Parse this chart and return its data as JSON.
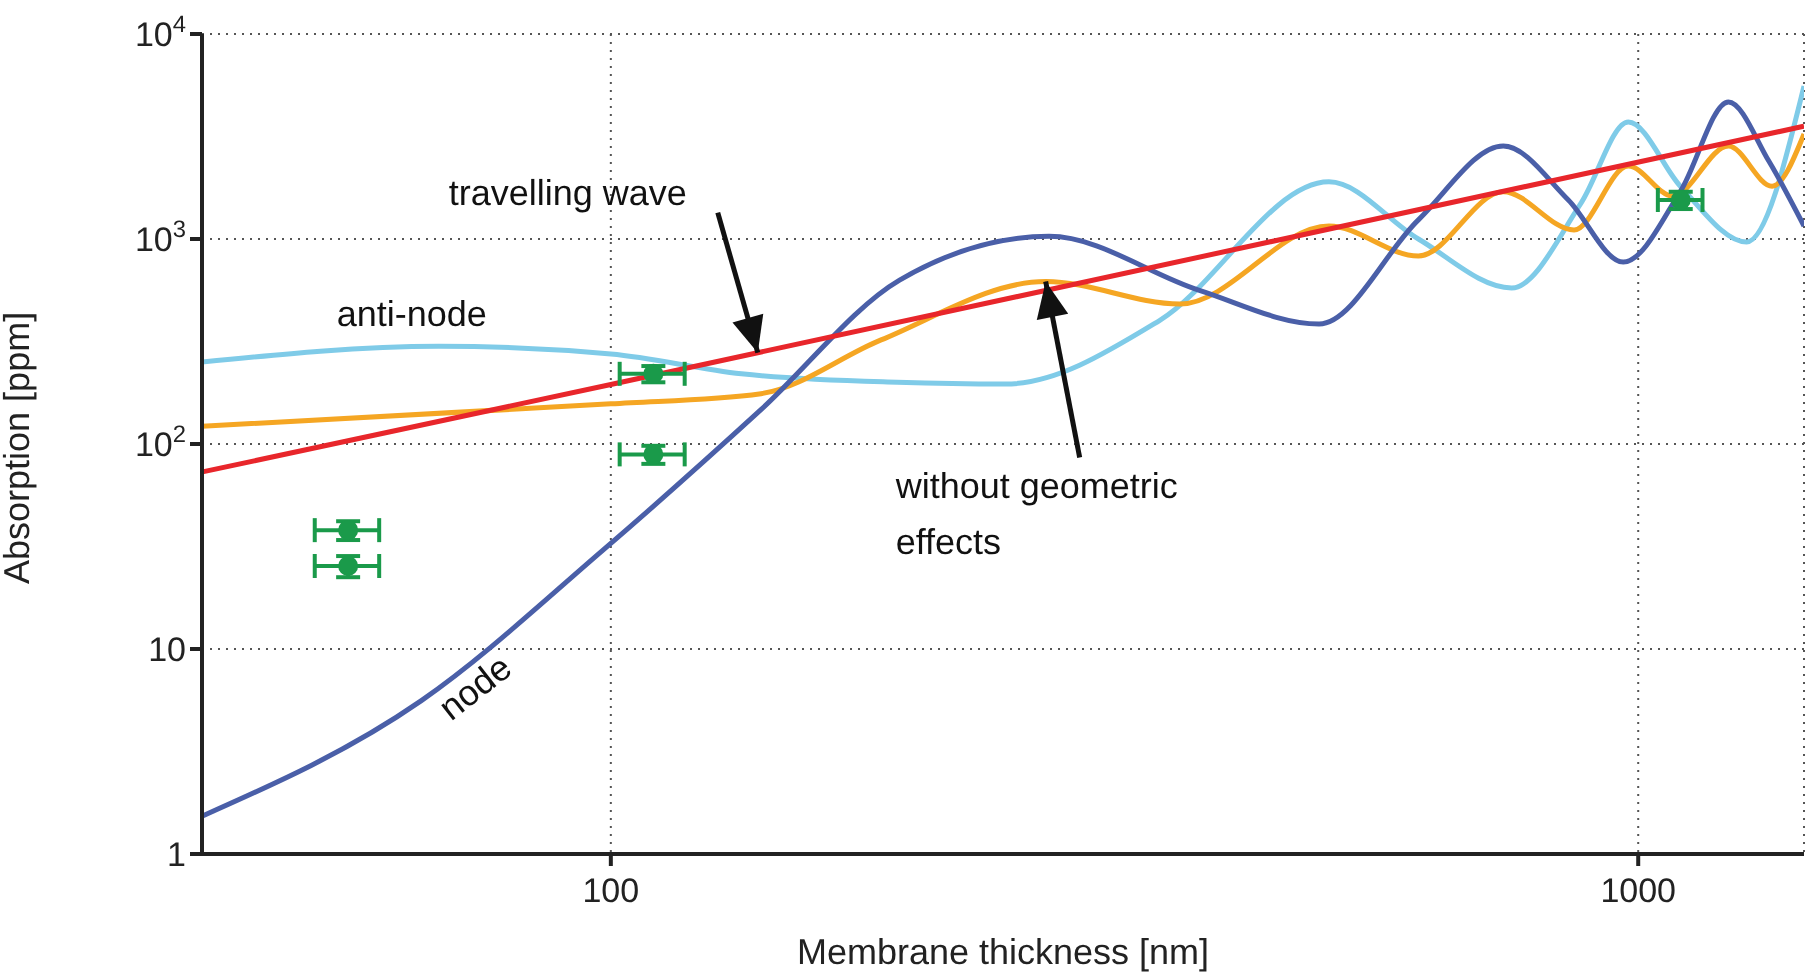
{
  "chart_data": {
    "type": "line",
    "xlabel": "Membrane thickness [nm]",
    "ylabel": "Absorption [ppm]",
    "log": "xy",
    "grid": true,
    "legend": false,
    "xlim": [
      40,
      1450
    ],
    "xticks": [
      100,
      1000
    ],
    "ylim": [
      1,
      10000
    ],
    "yticks": [
      1,
      10,
      {
        "value": 100,
        "label": "10$^{2}$"
      },
      {
        "value": 1000,
        "label": "10$^{3}$"
      },
      {
        "value": 10000,
        "label": "10$^{4}$"
      }
    ],
    "series": [
      {
        "type": "line",
        "color": "#7fcbe8",
        "x": [
          40,
          68,
          100,
          134,
          190,
          242,
          342,
          500,
          611,
          753,
          880,
          978,
          1100,
          1275,
          1450
        ],
        "values": [
          251,
          300,
          275,
          220,
          200,
          196,
          400,
          1900,
          1000,
          577,
          1500,
          3720,
          1800,
          967,
          5570
        ]
      },
      {
        "type": "line",
        "color": "#f5a623",
        "x": [
          40,
          100,
          140,
          183,
          265,
          358,
          500,
          611,
          739,
          866,
          978,
          1080,
          1224,
          1350,
          1450
        ],
        "values": [
          122,
          157,
          176,
          321,
          620,
          482,
          1157,
          826,
          1700,
          1107,
          2270,
          1620,
          2840,
          1810,
          3250
        ]
      },
      {
        "type": "line",
        "color": "#4a5fa8",
        "x": [
          40,
          65.4,
          98,
          140,
          191,
          267,
          374,
          489,
          611,
          739,
          855,
          967,
          1100,
          1224,
          1340,
          1450
        ],
        "values": [
          1.53,
          5.6,
          30,
          147,
          630,
          1030,
          562,
          385,
          1240,
          2840,
          1550,
          772,
          1720,
          4660,
          2400,
          1157
        ]
      },
      {
        "type": "line",
        "color": "#e8262b",
        "x": [
          40,
          100,
          1450
        ],
        "values": [
          73,
          195,
          3550
        ]
      },
      {
        "type": "scatter",
        "color": "#1a9a4a",
        "marker": "circle",
        "x": [
          55.5,
          55.5,
          110,
          110,
          1100
        ],
        "values": [
          38,
          25.4,
          220,
          89,
          1550
        ],
        "errors": [
          4,
          3,
          20,
          9,
          150
        ],
        "xerrors": [
          4,
          4,
          8,
          8,
          55
        ]
      }
    ],
    "annotations": [
      {
        "text": "travelling wave",
        "x": 139,
        "y": 279
      },
      {
        "text": "without geometric effects",
        "x": 265,
        "y": 620
      },
      {
        "text": "anti-node",
        "x": 64,
        "y": 300
      },
      {
        "text": "node",
        "x": 75,
        "y": 10
      }
    ]
  }
}
